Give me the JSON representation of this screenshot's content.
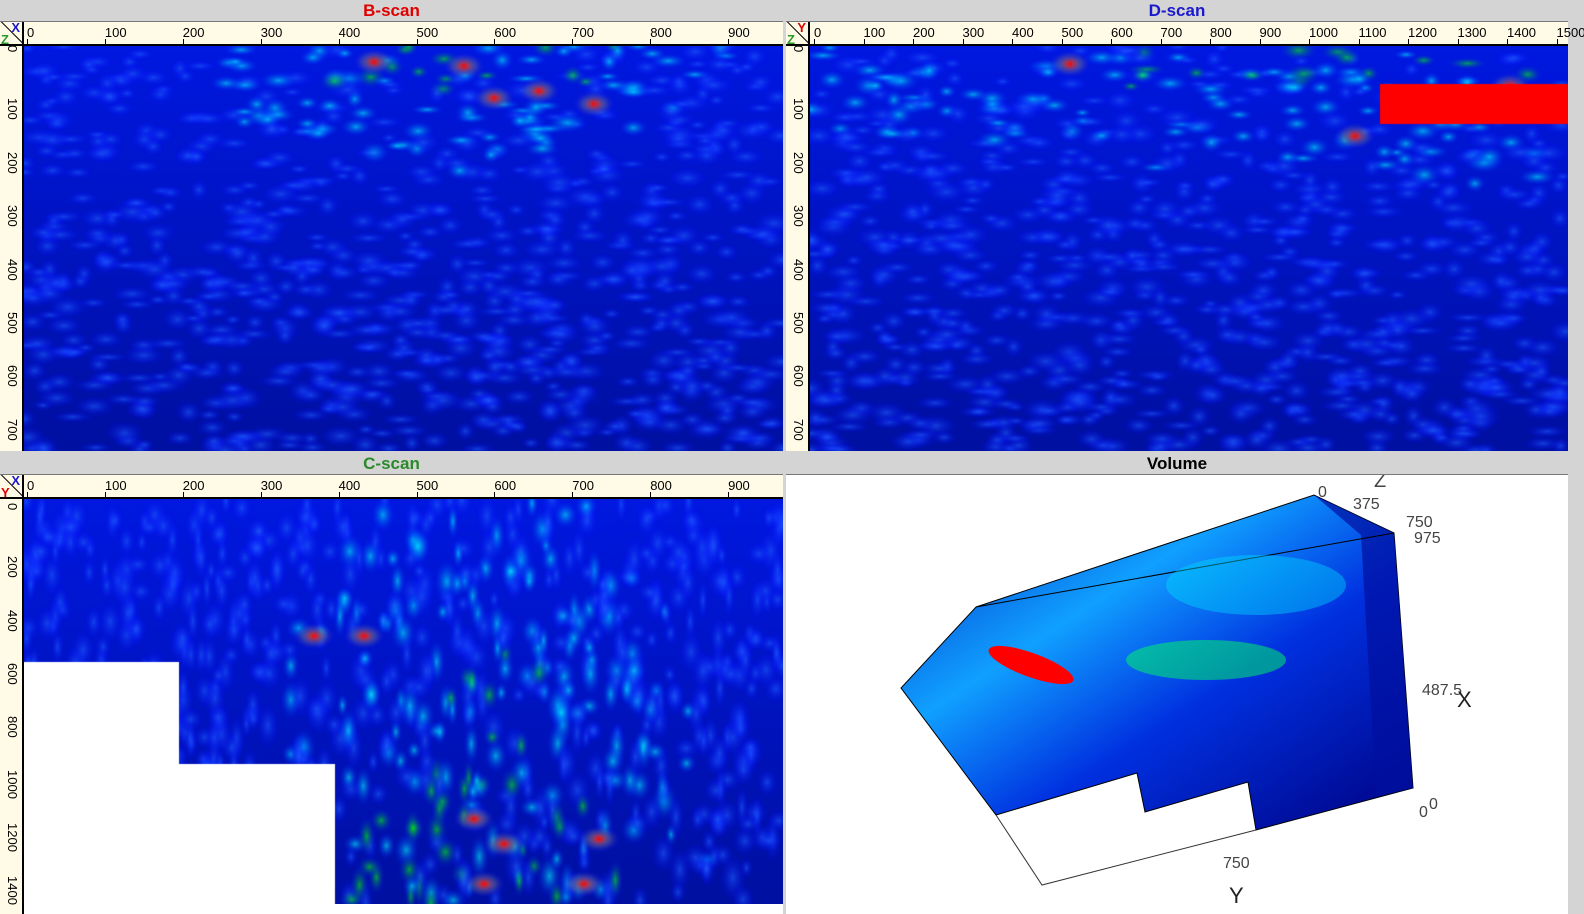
{
  "panels": {
    "bscan": {
      "title": "B-scan",
      "title_color": "#e00000",
      "axis_h": "X",
      "axis_v": "Z",
      "axis_h_color": "#1a1acc",
      "axis_v_color": "#2a9a2a",
      "x_ticks": [
        "0",
        "100",
        "200",
        "300",
        "400",
        "500",
        "600",
        "700",
        "800",
        "900"
      ],
      "y_ticks": [
        "0",
        "100",
        "200",
        "300",
        "400",
        "500",
        "600",
        "700"
      ]
    },
    "dscan": {
      "title": "D-scan",
      "title_color": "#1a1acc",
      "axis_h": "Y",
      "axis_v": "Z",
      "axis_h_color": "#e00000",
      "axis_v_color": "#2a9a2a",
      "x_ticks": [
        "0",
        "100",
        "200",
        "300",
        "400",
        "500",
        "600",
        "700",
        "800",
        "900",
        "1000",
        "1100",
        "1200",
        "1300",
        "1400",
        "1500"
      ],
      "y_ticks": [
        "0",
        "100",
        "200",
        "300",
        "400",
        "500",
        "600",
        "700"
      ]
    },
    "cscan": {
      "title": "C-scan",
      "title_color": "#2a8a2a",
      "axis_h": "X",
      "axis_v": "Y",
      "axis_h_color": "#1a1acc",
      "axis_v_color": "#e00000",
      "x_ticks": [
        "0",
        "100",
        "200",
        "300",
        "400",
        "500",
        "600",
        "700",
        "800",
        "900"
      ],
      "y_ticks": [
        "0",
        "200",
        "400",
        "600",
        "800",
        "1000",
        "1200",
        "1400"
      ]
    },
    "volume": {
      "title": "Volume",
      "title_color": "#000000",
      "labels": {
        "z_axis": "Z",
        "z0": "0",
        "z375": "375",
        "z750": "750",
        "x975": "975",
        "x487": "487.5",
        "x_axis": "X",
        "o0a": "0",
        "o0b": "0",
        "y750": "750",
        "y_axis": "Y"
      }
    }
  },
  "colormap": [
    "#000060",
    "#0000ff",
    "#00ffff",
    "#00ff00",
    "#ffff00",
    "#ff0000"
  ]
}
